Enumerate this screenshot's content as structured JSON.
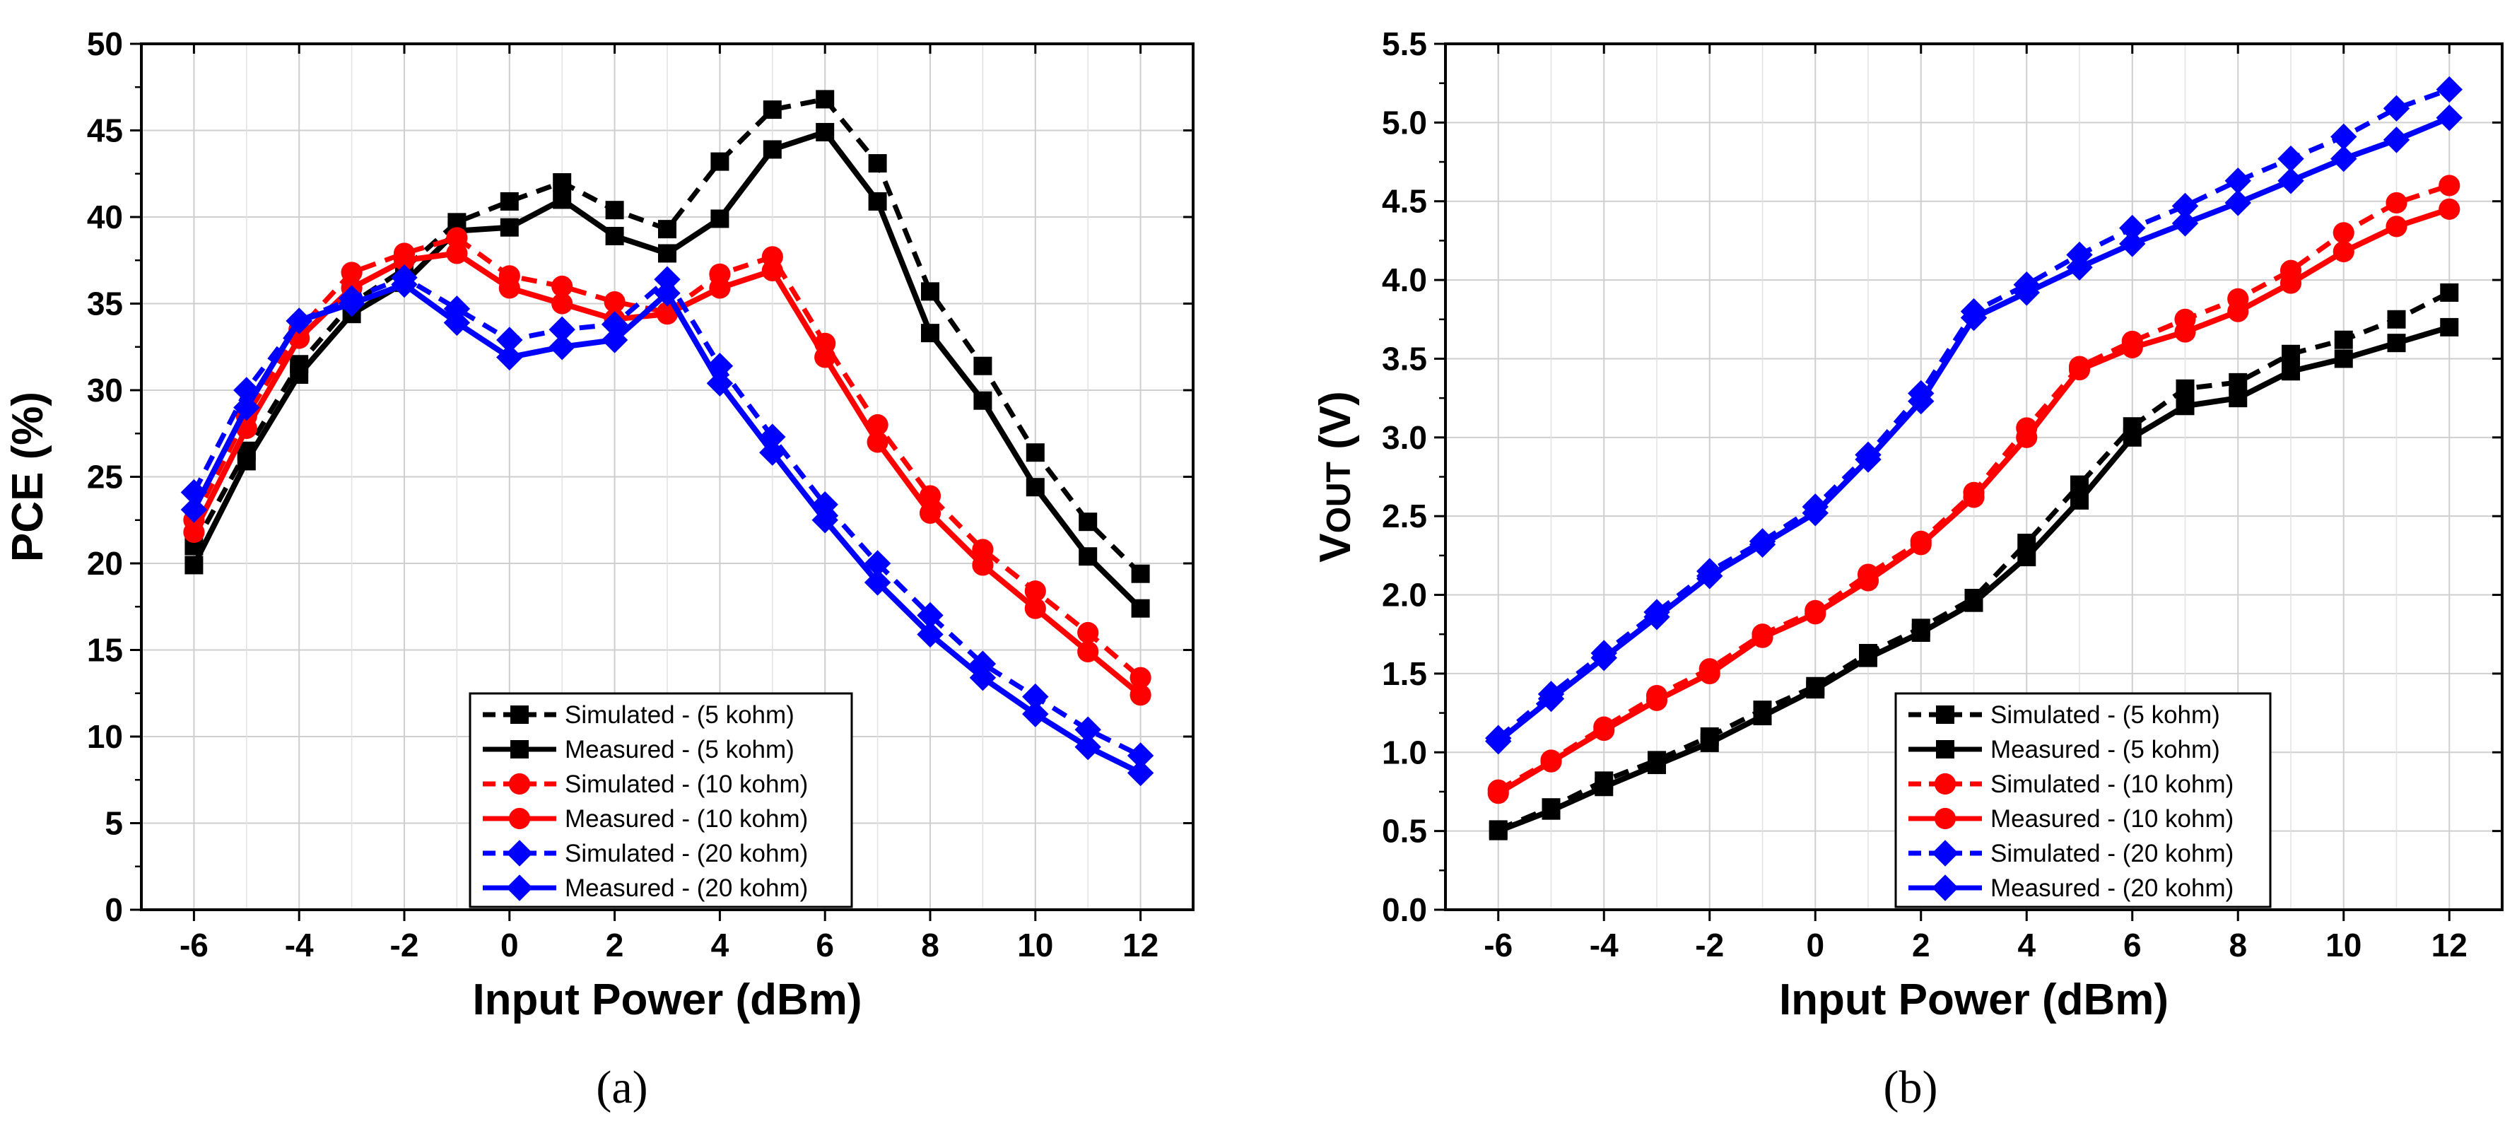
{
  "chart_data": [
    {
      "type": "line",
      "caption": "(a)",
      "xlabel": "Input Power (dBm)",
      "ylabel": "PCE (%)",
      "xlim": [
        -7.0,
        13.0
      ],
      "ylim": [
        0,
        50
      ],
      "xticks": [
        -6,
        -4,
        -2,
        0,
        2,
        4,
        6,
        8,
        10,
        12
      ],
      "yticks": [
        0,
        5,
        10,
        15,
        20,
        25,
        30,
        35,
        40,
        45,
        50
      ],
      "ytick_labels": [
        "0",
        "5",
        "10",
        "15",
        "20",
        "25",
        "30",
        "35",
        "40",
        "45",
        "50"
      ],
      "grid": true,
      "legend_position": "bottom-center",
      "x": [
        -6,
        -5,
        -4,
        -3,
        -2,
        -1,
        0,
        1,
        2,
        3,
        4,
        5,
        6,
        7,
        8,
        9,
        10,
        11,
        12
      ],
      "series": [
        {
          "name": "Simulated - (5 kohm)",
          "color": "#000000",
          "dash": true,
          "marker": "square",
          "values": [
            21,
            26.5,
            31.5,
            35,
            37,
            39.7,
            40.9,
            42,
            40.4,
            39.3,
            43.2,
            46.2,
            46.8,
            43.1,
            35.7,
            31.4,
            26.4,
            22.4,
            19.4
          ]
        },
        {
          "name": "Measured - (5 kohm)",
          "color": "#000000",
          "dash": false,
          "marker": "square",
          "values": [
            19.9,
            25.9,
            30.9,
            34.4,
            36.2,
            39.2,
            39.4,
            41,
            38.9,
            37.9,
            39.9,
            43.9,
            44.9,
            40.9,
            33.3,
            29.4,
            24.4,
            20.4,
            17.4
          ]
        },
        {
          "name": "Simulated - (10 kohm)",
          "color": "#ff0000",
          "dash": true,
          "marker": "circle",
          "values": [
            22.5,
            28.5,
            33.5,
            36.8,
            37.9,
            38.8,
            36.6,
            36,
            35.1,
            34.5,
            36.7,
            37.7,
            32.7,
            28,
            23.9,
            20.8,
            18.4,
            16,
            13.4
          ]
        },
        {
          "name": "Measured - (10 kohm)",
          "color": "#ff0000",
          "dash": false,
          "marker": "circle",
          "values": [
            21.8,
            27.8,
            33,
            35.9,
            37.5,
            37.9,
            35.9,
            35,
            34.1,
            34.4,
            35.9,
            36.9,
            31.9,
            27,
            22.9,
            19.9,
            17.4,
            14.9,
            12.4
          ]
        },
        {
          "name": "Simulated - (20 kohm)",
          "color": "#0000ff",
          "dash": true,
          "marker": "diamond",
          "values": [
            24.1,
            30,
            34,
            35.3,
            36.5,
            34.7,
            32.9,
            33.5,
            33.8,
            36.4,
            31.4,
            27.3,
            23.4,
            20,
            17,
            14.2,
            12.3,
            10.4,
            8.9
          ]
        },
        {
          "name": "Measured - (20 kohm)",
          "color": "#0000ff",
          "dash": false,
          "marker": "diamond",
          "values": [
            23.1,
            29,
            34,
            35,
            36.1,
            33.9,
            31.9,
            32.5,
            32.9,
            35.6,
            30.4,
            26.4,
            22.5,
            18.9,
            15.9,
            13.4,
            11.3,
            9.4,
            7.9
          ]
        }
      ]
    },
    {
      "type": "line",
      "caption": "(b)",
      "xlabel": "Input Power (dBm)",
      "ylabel_main": "V",
      "ylabel_sub": "OUT",
      "ylabel_unit": " (V)",
      "xlim": [
        -7.0,
        13.0
      ],
      "ylim": [
        0,
        5.5
      ],
      "xticks": [
        -6,
        -4,
        -2,
        0,
        2,
        4,
        6,
        8,
        10,
        12
      ],
      "yticks": [
        0,
        0.5,
        1,
        1.5,
        2,
        2.5,
        3,
        3.5,
        4,
        4.5,
        5,
        5.5
      ],
      "ytick_labels": [
        "0.0",
        "0.5",
        "1.0",
        "1.5",
        "2.0",
        "2.5",
        "3.0",
        "3.5",
        "4.0",
        "4.5",
        "5.0",
        "5.5"
      ],
      "grid": true,
      "legend_position": "bottom-right",
      "x": [
        -6,
        -5,
        -4,
        -3,
        -2,
        -1,
        0,
        1,
        2,
        3,
        4,
        5,
        6,
        7,
        8,
        9,
        10,
        11,
        12
      ],
      "series": [
        {
          "name": "Simulated - (5 kohm)",
          "color": "#000000",
          "dash": true,
          "marker": "square",
          "values": [
            0.51,
            0.65,
            0.82,
            0.95,
            1.1,
            1.27,
            1.42,
            1.63,
            1.79,
            1.98,
            2.33,
            2.7,
            3.07,
            3.31,
            3.35,
            3.53,
            3.62,
            3.75,
            3.92
          ]
        },
        {
          "name": "Measured - (5 kohm)",
          "color": "#000000",
          "dash": false,
          "marker": "square",
          "values": [
            0.5,
            0.63,
            0.78,
            0.92,
            1.06,
            1.23,
            1.4,
            1.6,
            1.76,
            1.95,
            2.24,
            2.6,
            3.0,
            3.2,
            3.25,
            3.42,
            3.5,
            3.6,
            3.7
          ]
        },
        {
          "name": "Simulated - (10 kohm)",
          "color": "#ff0000",
          "dash": true,
          "marker": "circle",
          "values": [
            0.76,
            0.95,
            1.16,
            1.36,
            1.53,
            1.75,
            1.9,
            2.13,
            2.34,
            2.65,
            3.06,
            3.45,
            3.61,
            3.75,
            3.88,
            4.06,
            4.3,
            4.49,
            4.6
          ]
        },
        {
          "name": "Measured - (10 kohm)",
          "color": "#ff0000",
          "dash": false,
          "marker": "circle",
          "values": [
            0.74,
            0.94,
            1.14,
            1.33,
            1.5,
            1.73,
            1.88,
            2.09,
            2.32,
            2.62,
            3.0,
            3.43,
            3.57,
            3.67,
            3.8,
            3.98,
            4.18,
            4.34,
            4.45
          ]
        },
        {
          "name": "Simulated - (20 kohm)",
          "color": "#0000ff",
          "dash": true,
          "marker": "diamond",
          "values": [
            1.09,
            1.37,
            1.63,
            1.89,
            2.15,
            2.34,
            2.56,
            2.89,
            3.28,
            3.8,
            3.97,
            4.16,
            4.33,
            4.47,
            4.63,
            4.77,
            4.91,
            5.09,
            5.21
          ]
        },
        {
          "name": "Measured - (20 kohm)",
          "color": "#0000ff",
          "dash": false,
          "marker": "diamond",
          "values": [
            1.07,
            1.34,
            1.6,
            1.86,
            2.12,
            2.32,
            2.52,
            2.86,
            3.23,
            3.76,
            3.92,
            4.08,
            4.23,
            4.36,
            4.49,
            4.63,
            4.77,
            4.89,
            5.03
          ]
        }
      ]
    }
  ]
}
